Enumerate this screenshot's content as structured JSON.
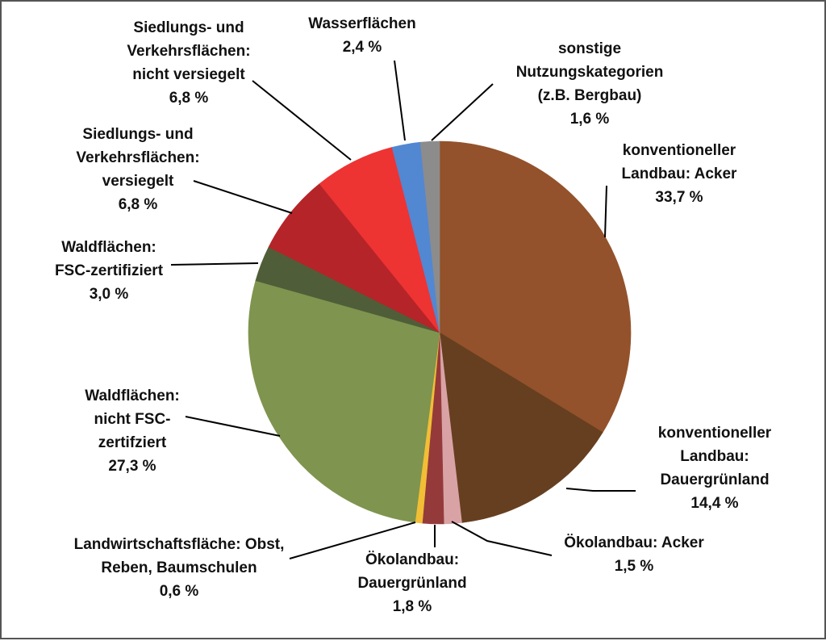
{
  "chart_data": {
    "type": "pie",
    "start_angle_deg": 0,
    "direction": "clockwise",
    "slices": [
      {
        "name": "konventioneller Landbau: Acker",
        "value": 33.7,
        "color": "#93522B",
        "label_lines": [
          "konventioneller",
          "Landbau: Acker",
          "33,7 %"
        ]
      },
      {
        "name": "konventioneller Landbau: Dauergrünland",
        "value": 14.4,
        "color": "#663F20",
        "label_lines": [
          "konventioneller",
          "Landbau:",
          "Dauergrünland",
          "14,4 %"
        ]
      },
      {
        "name": "Ökolandbau: Acker",
        "value": 1.5,
        "color": "#D9A3A6",
        "label_lines": [
          "Ökolandbau: Acker",
          "1,5 %"
        ]
      },
      {
        "name": "Ökolandbau: Dauergrünland",
        "value": 1.8,
        "color": "#953A3A",
        "label_lines": [
          "Ökolandbau:",
          "Dauergrünland",
          "1,8 %"
        ]
      },
      {
        "name": "Landwirtschaftsfläche: Obst, Reben, Baumschulen",
        "value": 0.6,
        "color": "#F2BE35",
        "label_lines": [
          "Landwirtschaftsfläche: Obst,",
          "Reben, Baumschulen",
          "0,6 %"
        ]
      },
      {
        "name": "Waldflächen: nicht FSC-zertifziert",
        "value": 27.3,
        "color": "#7F944E",
        "label_lines": [
          "Waldflächen:",
          "nicht FSC-",
          "zertifziert",
          "27,3 %"
        ]
      },
      {
        "name": "Waldflächen: FSC-zertifiziert",
        "value": 3.0,
        "color": "#4F5E38",
        "label_lines": [
          "Waldflächen:",
          "FSC-zertifiziert",
          "3,0 %"
        ]
      },
      {
        "name": "Siedlungs- und Verkehrsflächen: versiegelt",
        "value": 6.8,
        "color": "#B52428",
        "label_lines": [
          "Siedlungs- und",
          "Verkehrsflächen:",
          "versiegelt",
          "6,8 %"
        ]
      },
      {
        "name": "Siedlungs- und Verkehrsflächen: nicht versiegelt",
        "value": 6.8,
        "color": "#EE3333",
        "label_lines": [
          "Siedlungs- und",
          "Verkehrsflächen:",
          "nicht versiegelt",
          "6,8 %"
        ]
      },
      {
        "name": "Wasserflächen",
        "value": 2.4,
        "color": "#5287D2",
        "label_lines": [
          "Wasserflächen",
          "2,4 %"
        ]
      },
      {
        "name": "sonstige Nutzungskategorien (z.B. Bergbau)",
        "value": 1.6,
        "color": "#8C8C8C",
        "label_lines": [
          "sonstige",
          "Nutzungskategorien",
          "(z.B. Bergbau)",
          "1,6 %"
        ]
      }
    ]
  }
}
